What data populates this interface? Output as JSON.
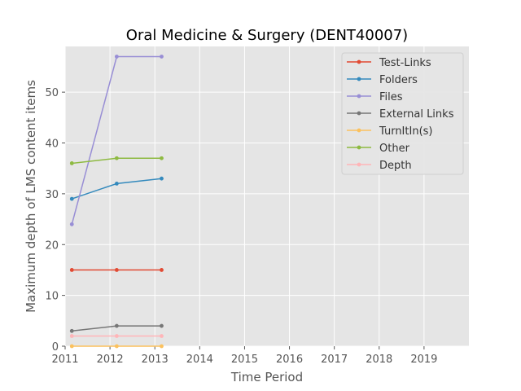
{
  "chart_data": {
    "type": "line",
    "title": "Oral Medicine & Surgery (DENT40007)",
    "xlabel": "Time Period",
    "ylabel": "Maximum depth of LMS content items",
    "xlim": [
      2011,
      2020
    ],
    "ylim": [
      0,
      59
    ],
    "x_ticks": [
      "2011",
      "2012",
      "2013",
      "2014",
      "2015",
      "2016",
      "2017",
      "2018",
      "2019"
    ],
    "y_ticks": [
      "0",
      "10",
      "20",
      "30",
      "40",
      "50"
    ],
    "x": [
      2011.15,
      2012.15,
      2013.15
    ],
    "legend_position": "top-right",
    "grid": true,
    "series": [
      {
        "name": "Test-Links",
        "color": "#E24A33",
        "values": [
          15,
          15,
          15
        ]
      },
      {
        "name": "Folders",
        "color": "#348ABD",
        "values": [
          29,
          32,
          33
        ]
      },
      {
        "name": "Files",
        "color": "#988ED5",
        "values": [
          24,
          57,
          57
        ]
      },
      {
        "name": "External Links",
        "color": "#777777",
        "values": [
          3,
          4,
          4
        ]
      },
      {
        "name": "TurnItIn(s)",
        "color": "#FBC15E",
        "values": [
          0,
          0,
          0
        ]
      },
      {
        "name": "Other",
        "color": "#8EBA42",
        "values": [
          36,
          37,
          37
        ]
      },
      {
        "name": "Depth",
        "color": "#FFB5B8",
        "values": [
          2,
          2,
          2
        ]
      }
    ]
  }
}
